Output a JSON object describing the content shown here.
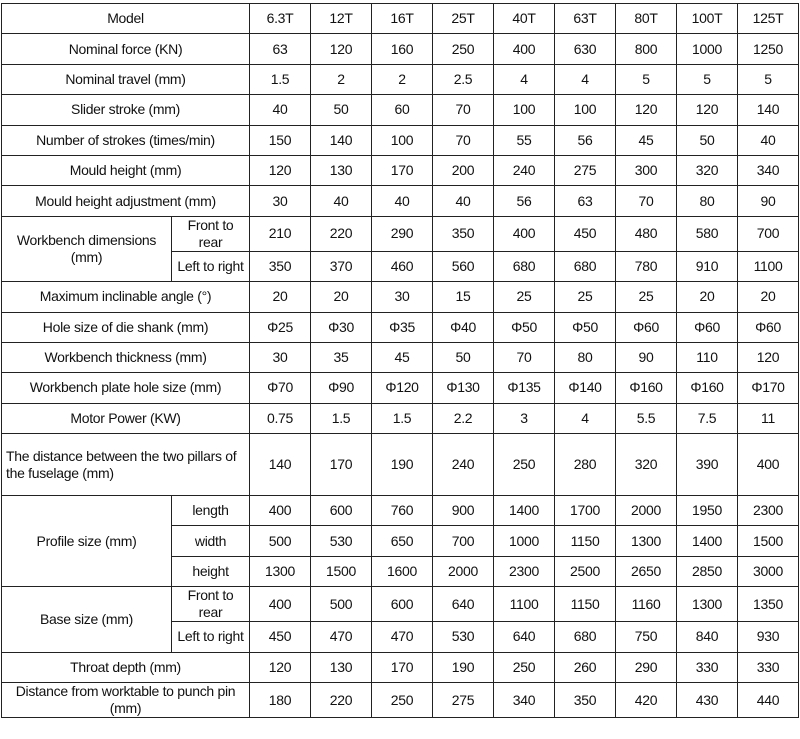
{
  "table": {
    "header": [
      "Model",
      "6.3T",
      "12T",
      "16T",
      "25T",
      "40T",
      "63T",
      "80T",
      "100T",
      "125T"
    ],
    "rows": [
      {
        "label": "Nominal force (KN)",
        "values": [
          63,
          120,
          160,
          250,
          400,
          630,
          800,
          1000,
          1250
        ]
      },
      {
        "label": "Nominal travel (mm)",
        "values": [
          1.5,
          2,
          2,
          2.5,
          4,
          4,
          5,
          5,
          5
        ]
      },
      {
        "label": "Slider stroke (mm)",
        "values": [
          40,
          50,
          60,
          70,
          100,
          100,
          120,
          120,
          140
        ]
      },
      {
        "label": "Number of strokes (times/min)",
        "values": [
          150,
          140,
          100,
          70,
          55,
          56,
          45,
          50,
          40
        ]
      },
      {
        "label": "Mould height (mm)",
        "values": [
          120,
          130,
          170,
          200,
          240,
          275,
          300,
          320,
          340
        ]
      },
      {
        "label": "Mould height adjustment (mm)",
        "values": [
          30,
          40,
          40,
          40,
          56,
          63,
          70,
          80,
          90
        ]
      },
      {
        "label": "Workbench dimensions (mm)",
        "subrows": [
          {
            "label": "Front to rear",
            "values": [
              210,
              220,
              290,
              350,
              400,
              450,
              480,
              580,
              700
            ]
          },
          {
            "label": "Left to right",
            "values": [
              350,
              370,
              460,
              560,
              680,
              680,
              780,
              910,
              1100
            ]
          }
        ]
      },
      {
        "label": "Maximum inclinable angle (°)",
        "values": [
          20,
          20,
          30,
          15,
          25,
          25,
          25,
          20,
          20
        ]
      },
      {
        "label": "Hole size of die shank (mm)",
        "values": [
          "Φ25",
          "Φ30",
          "Φ35",
          "Φ40",
          "Φ50",
          "Φ50",
          "Φ60",
          "Φ60",
          "Φ60"
        ]
      },
      {
        "label": "Workbench thickness (mm)",
        "values": [
          30,
          35,
          45,
          50,
          70,
          80,
          90,
          110,
          120
        ]
      },
      {
        "label": "Workbench plate hole size (mm)",
        "values": [
          "Φ70",
          "Φ90",
          "Φ120",
          "Φ130",
          "Φ135",
          "Φ140",
          "Φ160",
          "Φ160",
          "Φ170"
        ]
      },
      {
        "label": "Motor Power (KW)",
        "values": [
          0.75,
          1.5,
          1.5,
          2.2,
          3,
          4,
          5.5,
          7.5,
          11
        ]
      },
      {
        "label": "The distance between the two pillars of the fuselage (mm)",
        "values": [
          140,
          170,
          190,
          240,
          250,
          280,
          320,
          390,
          400
        ]
      },
      {
        "label": "Profile size (mm)",
        "subrows": [
          {
            "label": "length",
            "values": [
              400,
              600,
              760,
              900,
              1400,
              1700,
              2000,
              1950,
              2300
            ]
          },
          {
            "label": "width",
            "values": [
              500,
              530,
              650,
              700,
              1000,
              1150,
              1300,
              1400,
              1500
            ]
          },
          {
            "label": "height",
            "values": [
              1300,
              1500,
              1600,
              2000,
              2300,
              2500,
              2650,
              2850,
              3000
            ]
          }
        ]
      },
      {
        "label": "Base size (mm)",
        "subrows": [
          {
            "label": "Front to rear",
            "values": [
              400,
              500,
              600,
              640,
              1100,
              1150,
              1160,
              1300,
              1350
            ]
          },
          {
            "label": "Left to right",
            "values": [
              450,
              470,
              470,
              530,
              640,
              680,
              750,
              840,
              930
            ]
          }
        ]
      },
      {
        "label": "Throat depth (mm)",
        "values": [
          120,
          130,
          170,
          190,
          250,
          260,
          290,
          330,
          330
        ]
      },
      {
        "label": "Distance from worktable to punch pin (mm)",
        "values": [
          180,
          220,
          250,
          275,
          340,
          350,
          420,
          430,
          440
        ]
      }
    ]
  }
}
